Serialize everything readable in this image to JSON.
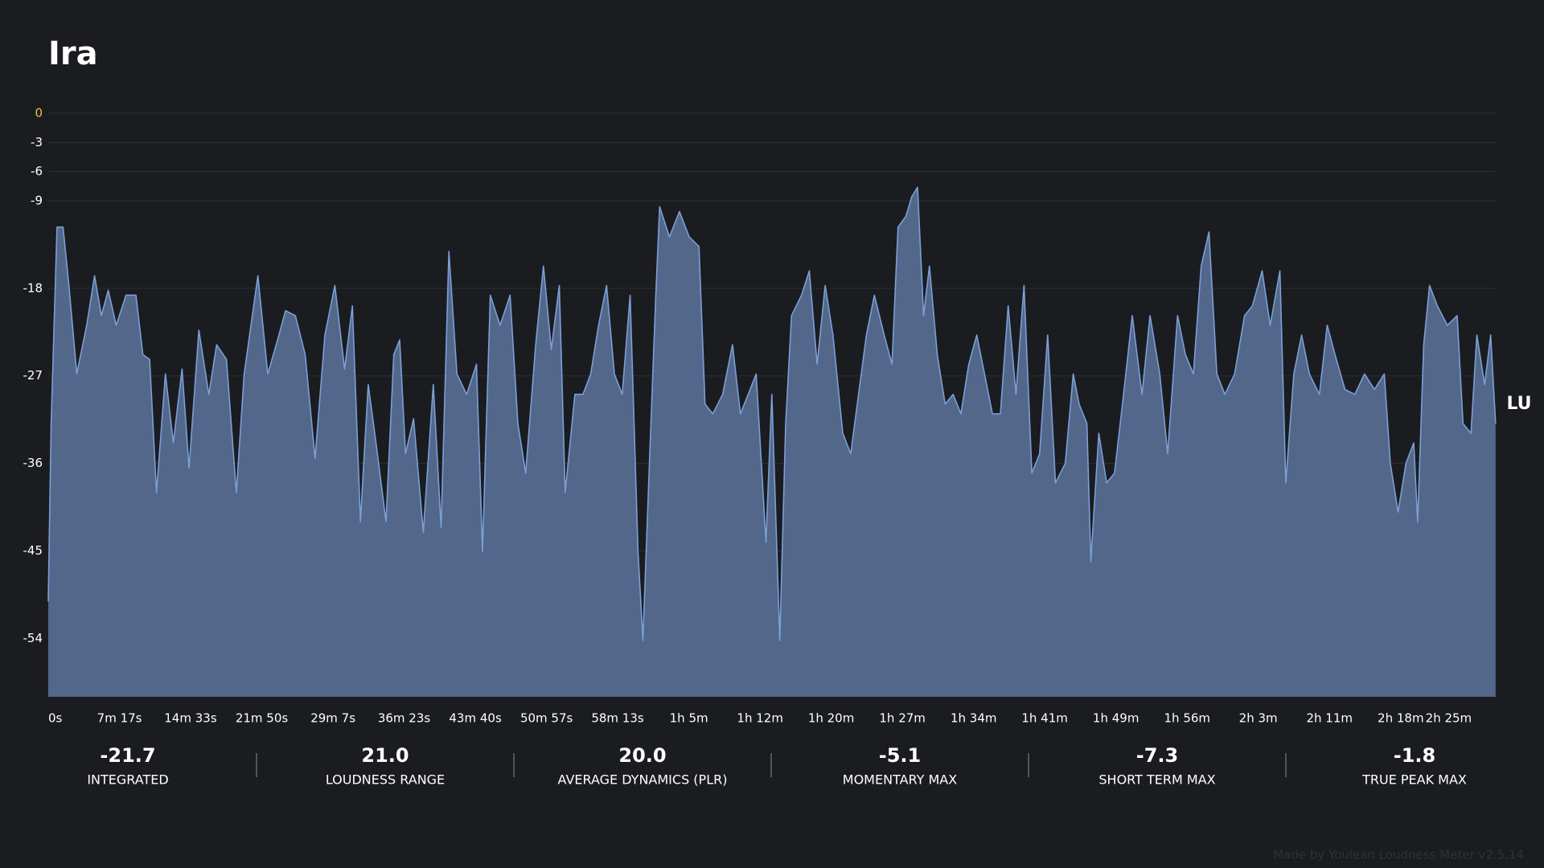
{
  "chart_data": {
    "type": "area",
    "title": "Ira",
    "unit_label": "LU",
    "color": "#52678a",
    "line_color": "#7b9fd6",
    "grid": true,
    "ylim": [
      -60,
      0
    ],
    "yticks": [
      0,
      -3,
      -6,
      -9,
      -18,
      -27,
      -36,
      -45,
      -54
    ],
    "zero_tick_color": "#f0c040",
    "xlim": [
      0,
      8880
    ],
    "xticks": [
      {
        "value": 0,
        "label": "0s"
      },
      {
        "value": 437,
        "label": "7m 17s"
      },
      {
        "value": 873,
        "label": "14m 33s"
      },
      {
        "value": 1310,
        "label": "21m 50s"
      },
      {
        "value": 1747,
        "label": "29m 7s"
      },
      {
        "value": 2183,
        "label": "36m 23s"
      },
      {
        "value": 2620,
        "label": "43m 40s"
      },
      {
        "value": 3057,
        "label": "50m 57s"
      },
      {
        "value": 3493,
        "label": "58m 13s"
      },
      {
        "value": 3930,
        "label": "1h 5m"
      },
      {
        "value": 4367,
        "label": "1h 12m"
      },
      {
        "value": 4803,
        "label": "1h 20m"
      },
      {
        "value": 5240,
        "label": "1h 27m"
      },
      {
        "value": 5677,
        "label": "1h 34m"
      },
      {
        "value": 6113,
        "label": "1h 41m"
      },
      {
        "value": 6550,
        "label": "1h 49m"
      },
      {
        "value": 6987,
        "label": "1h 56m"
      },
      {
        "value": 7423,
        "label": "2h 3m"
      },
      {
        "value": 7860,
        "label": "2h 11m"
      },
      {
        "value": 8297,
        "label": "2h 18m"
      },
      {
        "value": 8733,
        "label": "2h 25m"
      }
    ],
    "x": [
      0,
      18,
      54,
      91,
      127,
      175,
      236,
      284,
      326,
      368,
      417,
      477,
      538,
      580,
      622,
      664,
      719,
      767,
      821,
      864,
      924,
      985,
      1033,
      1093,
      1154,
      1202,
      1286,
      1347,
      1407,
      1456,
      1516,
      1576,
      1637,
      1697,
      1758,
      1818,
      1866,
      1915,
      1963,
      2011,
      2072,
      2120,
      2156,
      2192,
      2241,
      2301,
      2362,
      2410,
      2458,
      2507,
      2567,
      2627,
      2664,
      2712,
      2772,
      2833,
      2881,
      2929,
      2990,
      3038,
      3086,
      3135,
      3171,
      3231,
      3280,
      3328,
      3376,
      3425,
      3473,
      3521,
      3570,
      3618,
      3648,
      3690,
      3727,
      3751,
      3811,
      3872,
      3932,
      3992,
      4029,
      4077,
      4137,
      4198,
      4246,
      4294,
      4343,
      4403,
      4439,
      4488,
      4524,
      4560,
      4621,
      4669,
      4717,
      4766,
      4814,
      4874,
      4923,
      4971,
      5019,
      5068,
      5128,
      5176,
      5213,
      5261,
      5297,
      5333,
      5370,
      5406,
      5454,
      5502,
      5551,
      5599,
      5647,
      5696,
      5744,
      5792,
      5841,
      5889,
      5937,
      5986,
      6034,
      6082,
      6131,
      6179,
      6239,
      6288,
      6324,
      6372,
      6396,
      6445,
      6493,
      6541,
      6590,
      6650,
      6710,
      6759,
      6819,
      6867,
      6928,
      6976,
      7025,
      7073,
      7121,
      7169,
      7218,
      7278,
      7339,
      7387,
      7447,
      7496,
      7556,
      7592,
      7641,
      7689,
      7737,
      7798,
      7846,
      7894,
      7955,
      8015,
      8075,
      8136,
      8196,
      8233,
      8281,
      8329,
      8377,
      8401,
      8438,
      8474,
      8522,
      8583,
      8643,
      8679,
      8728,
      8764,
      8812,
      8849,
      8879
    ],
    "values": [
      -50.2,
      -31.9,
      -11.7,
      -11.7,
      -17.7,
      -26.8,
      -21.8,
      -16.7,
      -20.8,
      -18.2,
      -21.8,
      -18.7,
      -18.7,
      -24.8,
      -25.3,
      -39,
      -26.8,
      -33.9,
      -26.3,
      -36.5,
      -22.3,
      -28.9,
      -23.8,
      -25.3,
      -39,
      -26.8,
      -16.7,
      -26.8,
      -23.3,
      -20.3,
      -20.8,
      -24.8,
      -35.5,
      -22.8,
      -17.7,
      -26.3,
      -19.8,
      -42,
      -27.9,
      -33.9,
      -42,
      -24.8,
      -23.3,
      -35,
      -31.4,
      -43.1,
      -27.9,
      -42.6,
      -14.2,
      -26.8,
      -28.9,
      -25.8,
      -45.1,
      -18.7,
      -21.8,
      -18.7,
      -31.9,
      -37,
      -23.8,
      -15.7,
      -24.3,
      -17.7,
      -39,
      -28.9,
      -28.9,
      -26.8,
      -21.8,
      -17.7,
      -26.8,
      -28.9,
      -18.7,
      -45.1,
      -54.2,
      -35,
      -18.7,
      -9.6,
      -12.7,
      -10.1,
      -12.7,
      -13.7,
      -29.9,
      -30.9,
      -28.9,
      -23.8,
      -30.9,
      -28.9,
      -26.8,
      -44.1,
      -28.9,
      -54.2,
      -31.9,
      -20.8,
      -18.7,
      -16.2,
      -25.8,
      -17.7,
      -22.8,
      -32.9,
      -35,
      -28.9,
      -22.8,
      -18.7,
      -22.8,
      -25.8,
      -11.7,
      -10.6,
      -8.6,
      -7.6,
      -20.8,
      -15.7,
      -24.8,
      -29.9,
      -28.9,
      -30.9,
      -25.8,
      -22.8,
      -26.8,
      -30.9,
      -30.9,
      -19.8,
      -28.9,
      -17.7,
      -37,
      -35,
      -22.8,
      -38,
      -36,
      -26.8,
      -29.9,
      -31.9,
      -46.1,
      -32.9,
      -38,
      -37,
      -29.9,
      -20.8,
      -28.9,
      -20.8,
      -26.8,
      -35,
      -20.8,
      -24.8,
      -26.8,
      -15.7,
      -12.2,
      -26.8,
      -28.9,
      -26.8,
      -20.8,
      -19.8,
      -16.2,
      -21.8,
      -16.2,
      -38,
      -26.8,
      -22.8,
      -26.8,
      -28.9,
      -21.8,
      -24.8,
      -28.4,
      -28.9,
      -26.8,
      -28.4,
      -26.8,
      -36,
      -41,
      -36,
      -33.9,
      -42,
      -23.8,
      -17.7,
      -19.8,
      -21.8,
      -20.8,
      -31.9,
      -32.9,
      -22.8,
      -27.9,
      -22.8,
      -31.9
    ]
  },
  "stats": [
    {
      "value": "-21.7",
      "name": "INTEGRATED"
    },
    {
      "value": "21.0",
      "name": "LOUDNESS RANGE"
    },
    {
      "value": "20.0",
      "name": "AVERAGE DYNAMICS (PLR)"
    },
    {
      "value": "-5.1",
      "name": "MOMENTARY MAX"
    },
    {
      "value": "-7.3",
      "name": "SHORT TERM MAX"
    },
    {
      "value": "-1.8",
      "name": "TRUE PEAK MAX"
    }
  ],
  "footer": "Made by Youlean Loudness Meter v2.5.14"
}
